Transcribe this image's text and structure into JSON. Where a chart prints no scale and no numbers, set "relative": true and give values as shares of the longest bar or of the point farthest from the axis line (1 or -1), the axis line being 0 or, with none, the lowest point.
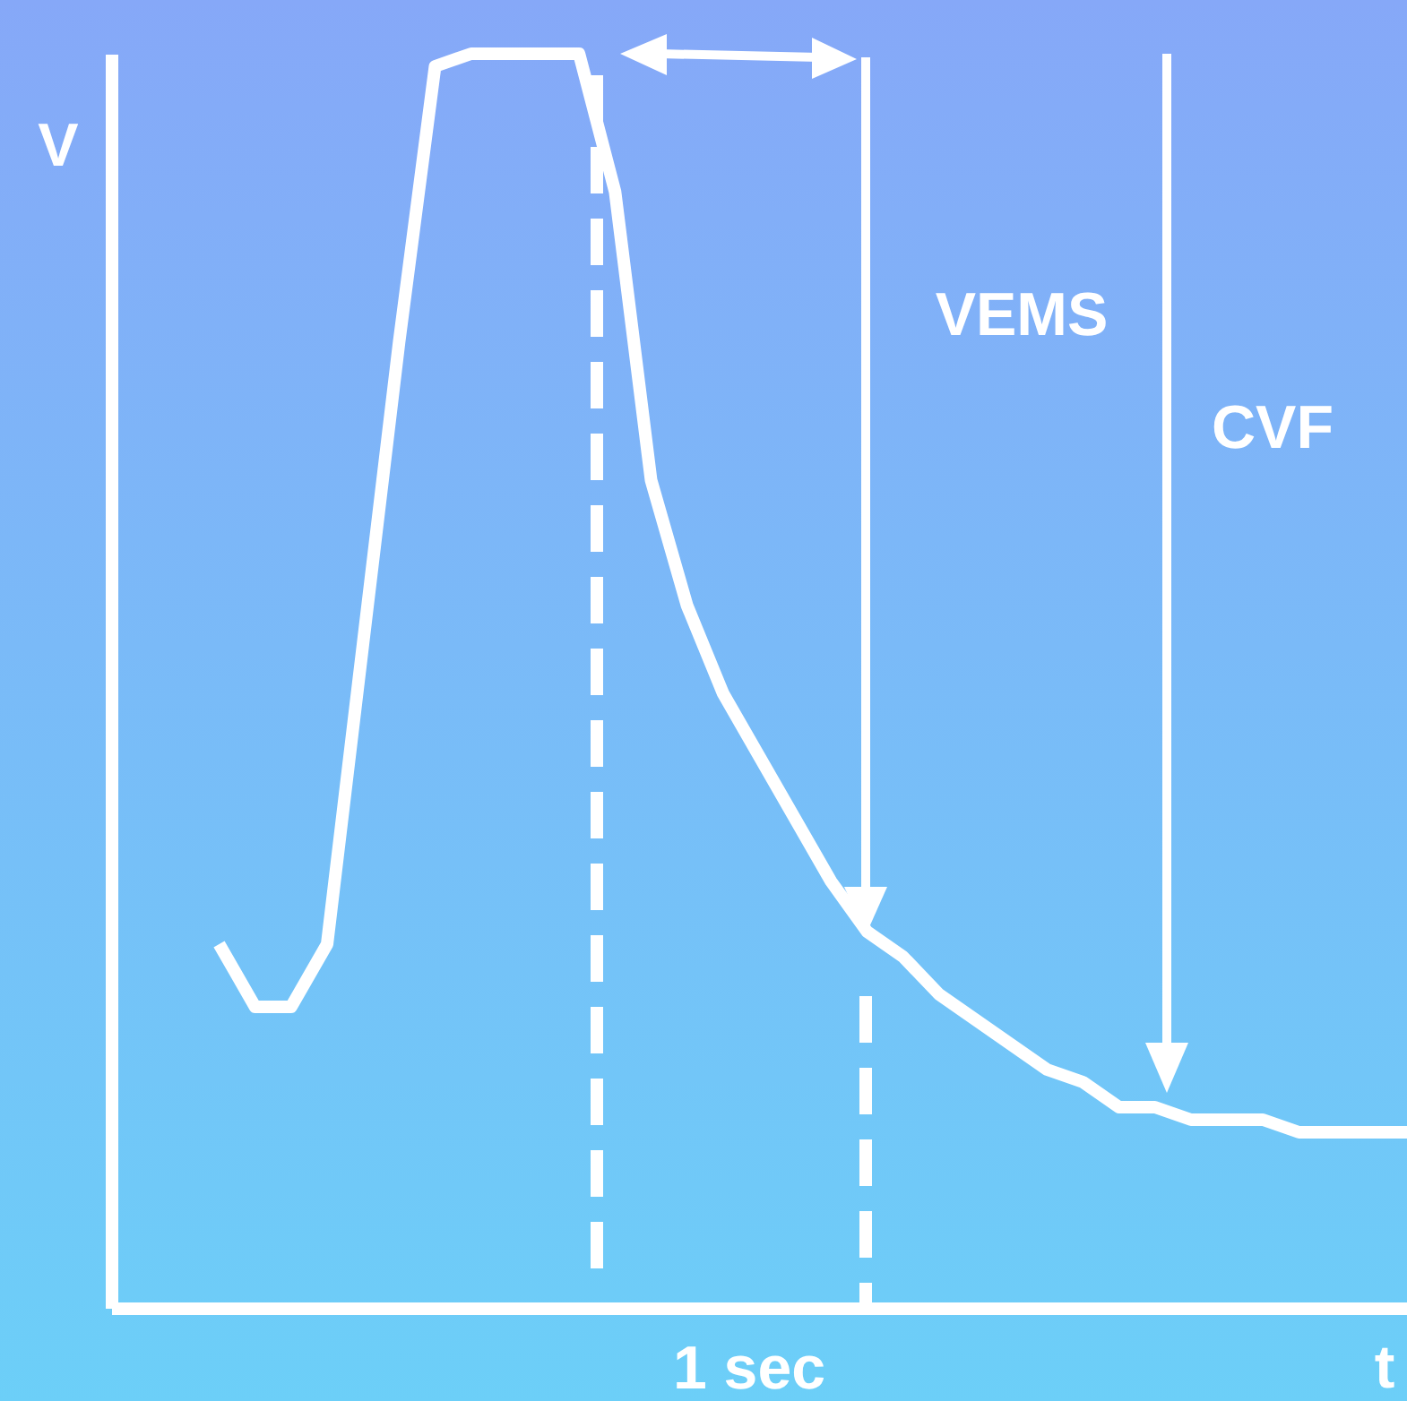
{
  "chart_data": {
    "type": "line",
    "relative": true,
    "xlabel": "t",
    "ylabel": "V",
    "categories": [
      null,
      null,
      null,
      null,
      null,
      null,
      null,
      null,
      null,
      null,
      null,
      null,
      null,
      null,
      null,
      null,
      null,
      null,
      null,
      null,
      null,
      null,
      null,
      null,
      null,
      null,
      null,
      null,
      null,
      null,
      null,
      null,
      null,
      null,
      null,
      null,
      null
    ],
    "series": [
      {
        "color": "#ffffff",
        "values": [
          null,
          null,
          null,
          0.29,
          0.24,
          0.24,
          0.29,
          0.53,
          0.77,
          0.99,
          1,
          1,
          1,
          1,
          0.89,
          0.66,
          0.56,
          0.49,
          0.44,
          0.39,
          0.34,
          0.3,
          0.28,
          0.25,
          0.23,
          0.21,
          0.19,
          0.18,
          0.16,
          0.16,
          0.15,
          0.15,
          0.15,
          0.14,
          0.14,
          0.14,
          0.14
        ]
      }
    ],
    "annotations": [
      "VEMS",
      "CVF",
      "1 sec"
    ]
  }
}
